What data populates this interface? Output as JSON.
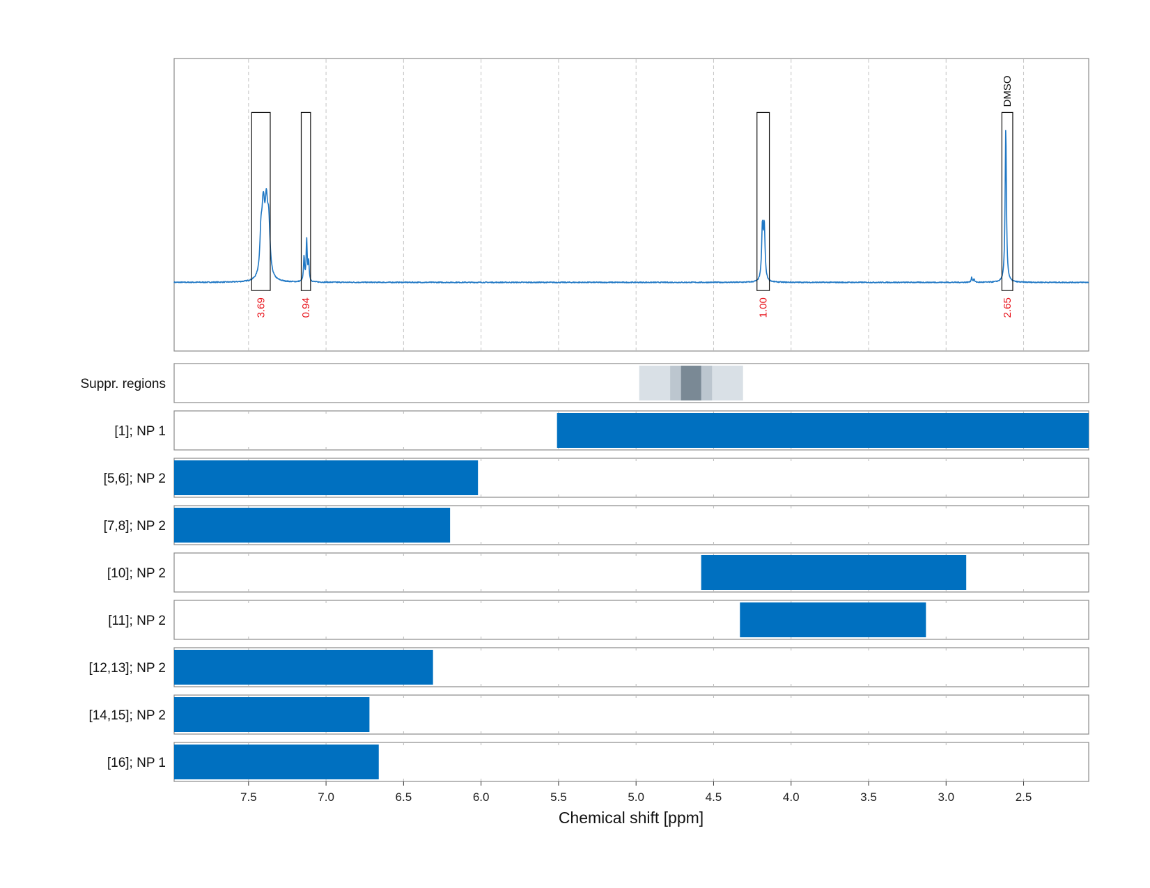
{
  "chart_data": {
    "type": "nmr_spectrum_with_range_bars",
    "xlabel": "Chemical shift [ppm]",
    "xlim": [
      7.98,
      2.08
    ],
    "x_ticks": [
      7.5,
      7.0,
      6.5,
      6.0,
      5.5,
      5.0,
      4.5,
      4.0,
      3.5,
      3.0,
      2.5
    ],
    "x_tick_labels": [
      "7.5",
      "7.0",
      "6.5",
      "6.0",
      "5.5",
      "5.0",
      "4.5",
      "4.0",
      "3.5",
      "3.0",
      "2.5"
    ],
    "grid": true,
    "colors": {
      "spectrum": "#1f77c4",
      "bar": "#0070c0",
      "integral_text": "#e8141c",
      "suppr_light": "#d9e0e6",
      "suppr_mid": "#bcc6cf",
      "suppr_dark": "#7a8995"
    },
    "spectrum": {
      "baseline": 0,
      "ylim": [
        -0.42,
        1.37
      ],
      "peaks": [
        {
          "center": 7.405,
          "height": 0.42,
          "width": 0.012
        },
        {
          "center": 7.385,
          "height": 0.36,
          "width": 0.01
        },
        {
          "center": 7.37,
          "height": 0.3,
          "width": 0.01
        },
        {
          "center": 7.42,
          "height": 0.2,
          "width": 0.008
        },
        {
          "center": 7.142,
          "height": 0.15,
          "width": 0.004
        },
        {
          "center": 7.125,
          "height": 0.26,
          "width": 0.004
        },
        {
          "center": 7.112,
          "height": 0.12,
          "width": 0.004
        },
        {
          "center": 4.185,
          "height": 0.32,
          "width": 0.006
        },
        {
          "center": 4.173,
          "height": 0.32,
          "width": 0.006
        },
        {
          "center": 2.835,
          "height": 0.03,
          "width": 0.004
        },
        {
          "center": 2.82,
          "height": 0.02,
          "width": 0.004
        },
        {
          "center": 2.615,
          "height": 0.94,
          "width": 0.005
        }
      ],
      "integration_regions": [
        {
          "from": 7.48,
          "to": 7.36,
          "integral": "3.69"
        },
        {
          "from": 7.16,
          "to": 7.1,
          "integral": "0.94"
        },
        {
          "from": 4.22,
          "to": 4.14,
          "integral": "1.00"
        },
        {
          "from": 2.64,
          "to": 2.57,
          "integral": "2.65",
          "annotation": "DMSO"
        }
      ]
    },
    "suppression": {
      "label": "Suppr. regions",
      "bands": [
        {
          "from": 4.98,
          "to": 4.31,
          "shade": "suppr_light"
        },
        {
          "from": 4.78,
          "to": 4.51,
          "shade": "suppr_mid"
        },
        {
          "from": 4.71,
          "to": 4.58,
          "shade": "suppr_dark"
        }
      ]
    },
    "ranges": [
      {
        "label": "[1]; NP 1",
        "from": 5.51,
        "to": 2.08
      },
      {
        "label": "[5,6]; NP 2",
        "from": 7.98,
        "to": 6.02
      },
      {
        "label": "[7,8]; NP 2",
        "from": 7.98,
        "to": 6.2
      },
      {
        "label": "[10]; NP 2",
        "from": 4.58,
        "to": 2.87
      },
      {
        "label": "[11]; NP 2",
        "from": 4.33,
        "to": 3.13
      },
      {
        "label": "[12,13]; NP 2",
        "from": 7.98,
        "to": 6.31
      },
      {
        "label": "[14,15]; NP 2",
        "from": 7.98,
        "to": 6.72
      },
      {
        "label": "[16]; NP 1",
        "from": 7.98,
        "to": 6.66
      }
    ]
  }
}
